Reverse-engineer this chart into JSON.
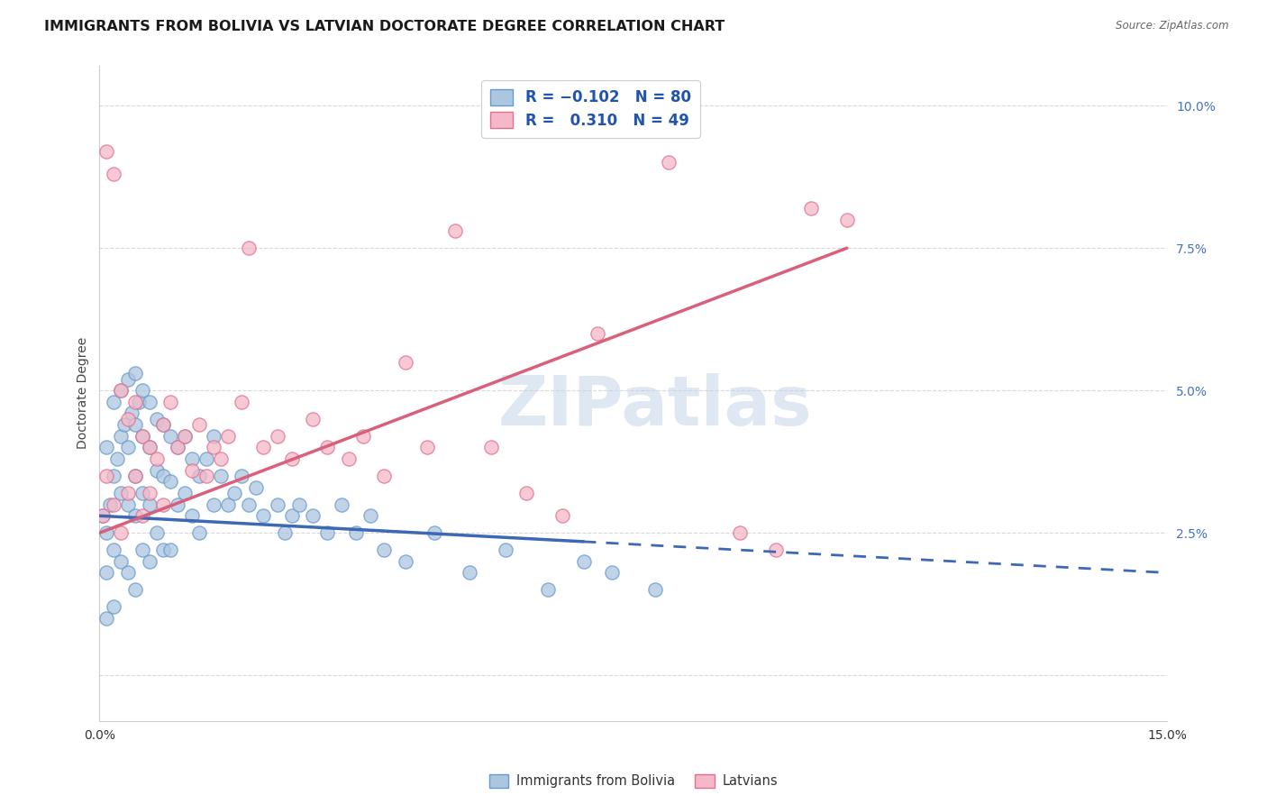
{
  "title": "IMMIGRANTS FROM BOLIVIA VS LATVIAN DOCTORATE DEGREE CORRELATION CHART",
  "source": "Source: ZipAtlas.com",
  "ylabel": "Doctorate Degree",
  "xlim": [
    0.0,
    0.15
  ],
  "ylim": [
    -0.008,
    0.107
  ],
  "yticks": [
    0.0,
    0.025,
    0.05,
    0.075,
    0.1
  ],
  "ytick_labels": [
    "",
    "2.5%",
    "5.0%",
    "7.5%",
    "10.0%"
  ],
  "xticks": [
    0.0,
    0.015,
    0.03,
    0.045,
    0.06,
    0.075,
    0.09,
    0.105,
    0.12,
    0.135,
    0.15
  ],
  "series1_color": "#adc6e0",
  "series1_edge": "#6699cc",
  "series2_color": "#f5b8c8",
  "series2_edge": "#e07090",
  "trend1_color": "#3d68b4",
  "trend2_color": "#d9607a",
  "legend_label1": "Immigrants from Bolivia",
  "legend_label2": "Latvians",
  "watermark": "ZIPatlas",
  "background_color": "#ffffff",
  "grid_color": "#d8d8d8",
  "title_fontsize": 11.5,
  "axis_label_fontsize": 10,
  "tick_color": "#4472c4",
  "bolivia_x": [
    0.0005,
    0.001,
    0.001,
    0.001,
    0.001,
    0.0015,
    0.002,
    0.002,
    0.002,
    0.002,
    0.0025,
    0.003,
    0.003,
    0.003,
    0.003,
    0.0035,
    0.004,
    0.004,
    0.004,
    0.004,
    0.0045,
    0.005,
    0.005,
    0.005,
    0.005,
    0.005,
    0.0055,
    0.006,
    0.006,
    0.006,
    0.006,
    0.007,
    0.007,
    0.007,
    0.007,
    0.008,
    0.008,
    0.008,
    0.009,
    0.009,
    0.009,
    0.01,
    0.01,
    0.01,
    0.011,
    0.011,
    0.012,
    0.012,
    0.013,
    0.013,
    0.014,
    0.014,
    0.015,
    0.016,
    0.016,
    0.017,
    0.018,
    0.019,
    0.02,
    0.021,
    0.022,
    0.023,
    0.025,
    0.026,
    0.027,
    0.028,
    0.03,
    0.032,
    0.034,
    0.036,
    0.038,
    0.04,
    0.043,
    0.047,
    0.052,
    0.057,
    0.063,
    0.068,
    0.072,
    0.078
  ],
  "bolivia_y": [
    0.028,
    0.04,
    0.025,
    0.018,
    0.01,
    0.03,
    0.048,
    0.035,
    0.022,
    0.012,
    0.038,
    0.05,
    0.042,
    0.032,
    0.02,
    0.044,
    0.052,
    0.04,
    0.03,
    0.018,
    0.046,
    0.053,
    0.044,
    0.035,
    0.028,
    0.015,
    0.048,
    0.05,
    0.042,
    0.032,
    0.022,
    0.048,
    0.04,
    0.03,
    0.02,
    0.045,
    0.036,
    0.025,
    0.044,
    0.035,
    0.022,
    0.042,
    0.034,
    0.022,
    0.04,
    0.03,
    0.042,
    0.032,
    0.038,
    0.028,
    0.035,
    0.025,
    0.038,
    0.042,
    0.03,
    0.035,
    0.03,
    0.032,
    0.035,
    0.03,
    0.033,
    0.028,
    0.03,
    0.025,
    0.028,
    0.03,
    0.028,
    0.025,
    0.03,
    0.025,
    0.028,
    0.022,
    0.02,
    0.025,
    0.018,
    0.022,
    0.015,
    0.02,
    0.018,
    0.015
  ],
  "latvian_x": [
    0.0005,
    0.001,
    0.001,
    0.002,
    0.002,
    0.003,
    0.003,
    0.004,
    0.004,
    0.005,
    0.005,
    0.006,
    0.006,
    0.007,
    0.007,
    0.008,
    0.009,
    0.009,
    0.01,
    0.011,
    0.012,
    0.013,
    0.014,
    0.015,
    0.016,
    0.017,
    0.018,
    0.02,
    0.021,
    0.023,
    0.025,
    0.027,
    0.03,
    0.032,
    0.035,
    0.037,
    0.04,
    0.043,
    0.046,
    0.05,
    0.055,
    0.06,
    0.065,
    0.07,
    0.08,
    0.09,
    0.095,
    0.1,
    0.105
  ],
  "latvian_y": [
    0.028,
    0.092,
    0.035,
    0.088,
    0.03,
    0.05,
    0.025,
    0.045,
    0.032,
    0.048,
    0.035,
    0.042,
    0.028,
    0.04,
    0.032,
    0.038,
    0.044,
    0.03,
    0.048,
    0.04,
    0.042,
    0.036,
    0.044,
    0.035,
    0.04,
    0.038,
    0.042,
    0.048,
    0.075,
    0.04,
    0.042,
    0.038,
    0.045,
    0.04,
    0.038,
    0.042,
    0.035,
    0.055,
    0.04,
    0.078,
    0.04,
    0.032,
    0.028,
    0.06,
    0.09,
    0.025,
    0.022,
    0.082,
    0.08
  ],
  "trend1_x_start": 0.0,
  "trend1_x_solid_end": 0.068,
  "trend1_x_end": 0.15,
  "trend1_y_start": 0.028,
  "trend1_y_end": 0.018,
  "trend2_x_start": 0.0,
  "trend2_x_end": 0.105,
  "trend2_y_start": 0.025,
  "trend2_y_end": 0.075
}
